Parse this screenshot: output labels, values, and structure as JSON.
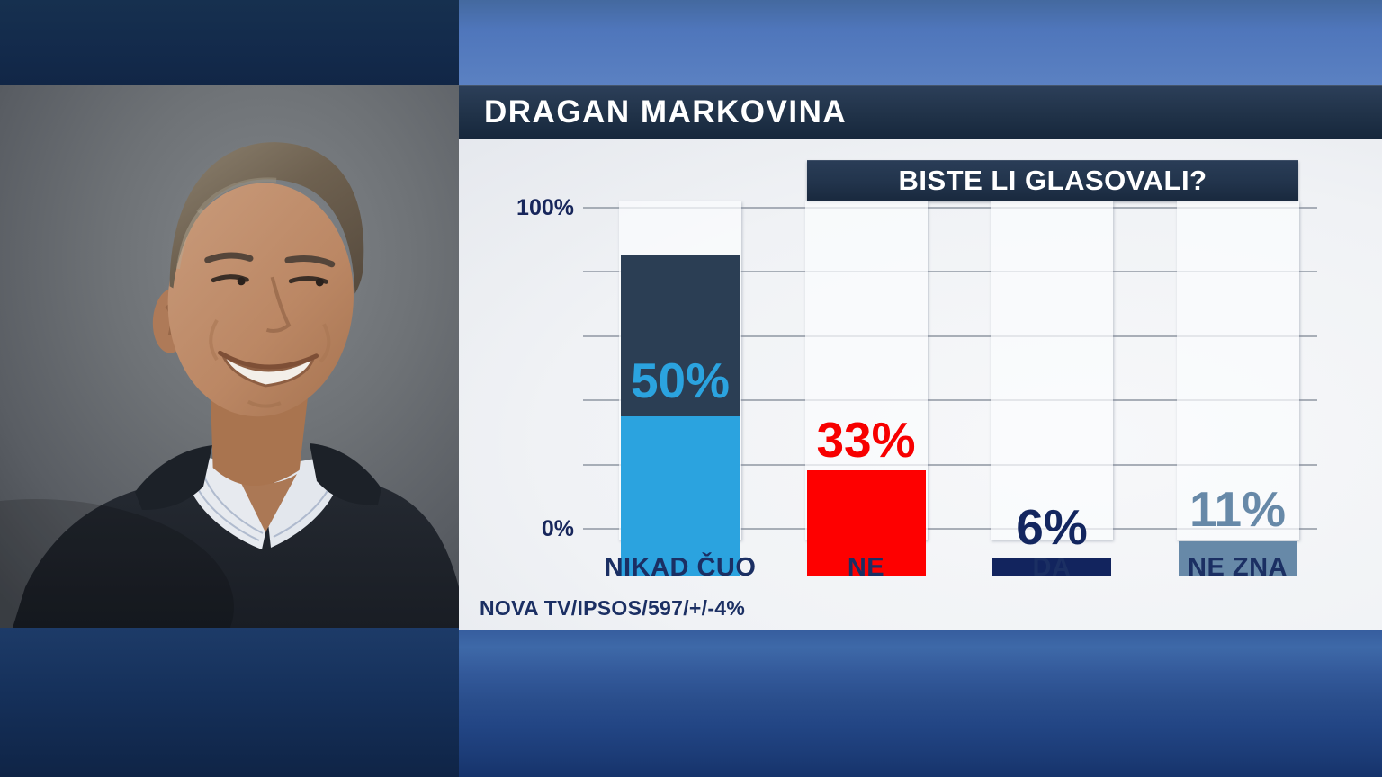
{
  "header": {
    "title": "DRAGAN MARKOVINA"
  },
  "photo": {
    "description": "Studio portrait of a smiling man with short hair wearing a dark polo shirt over a striped open collar shirt, gray background"
  },
  "chart": {
    "y_axis": {
      "top": "100%",
      "bottom": "0%"
    },
    "source": "NOVA TV/IPSOS/597/+/-4%"
  },
  "chart_data": {
    "type": "bar",
    "title": "BISTE LI GLASOVALI?",
    "categories": [
      "NIKAD ČUO",
      "NE",
      "DA",
      "NE ZNA"
    ],
    "values": [
      50,
      33,
      6,
      11
    ],
    "value_labels": [
      "50%",
      "33%",
      "6%",
      "11%"
    ],
    "bar_colors": [
      "#2ba3df",
      "#fe0000",
      "#12245e",
      "#6789a8"
    ],
    "value_label_colors": [
      "#2ba3df",
      "#f70000",
      "#13265f",
      "#6789a8"
    ],
    "first_bar_backdrop_to_100": true,
    "backdrop_color": "#2b3e54",
    "ylim": [
      0,
      100
    ],
    "gridline_step_percent": 20,
    "y_tick_labels_shown": [
      "100%",
      "0%"
    ],
    "legend": "none",
    "xlabel": "",
    "ylabel": ""
  },
  "colors": {
    "accent_light_blue": "#2ba3df",
    "red": "#fe0000",
    "deep_navy": "#12245e",
    "slate_blue": "#6789a8",
    "band_navy": "#1c2f47",
    "category_text": "#1b2f63",
    "top_background_blue": "#5076bb",
    "bottom_background_blue": "#2a4e8c"
  }
}
